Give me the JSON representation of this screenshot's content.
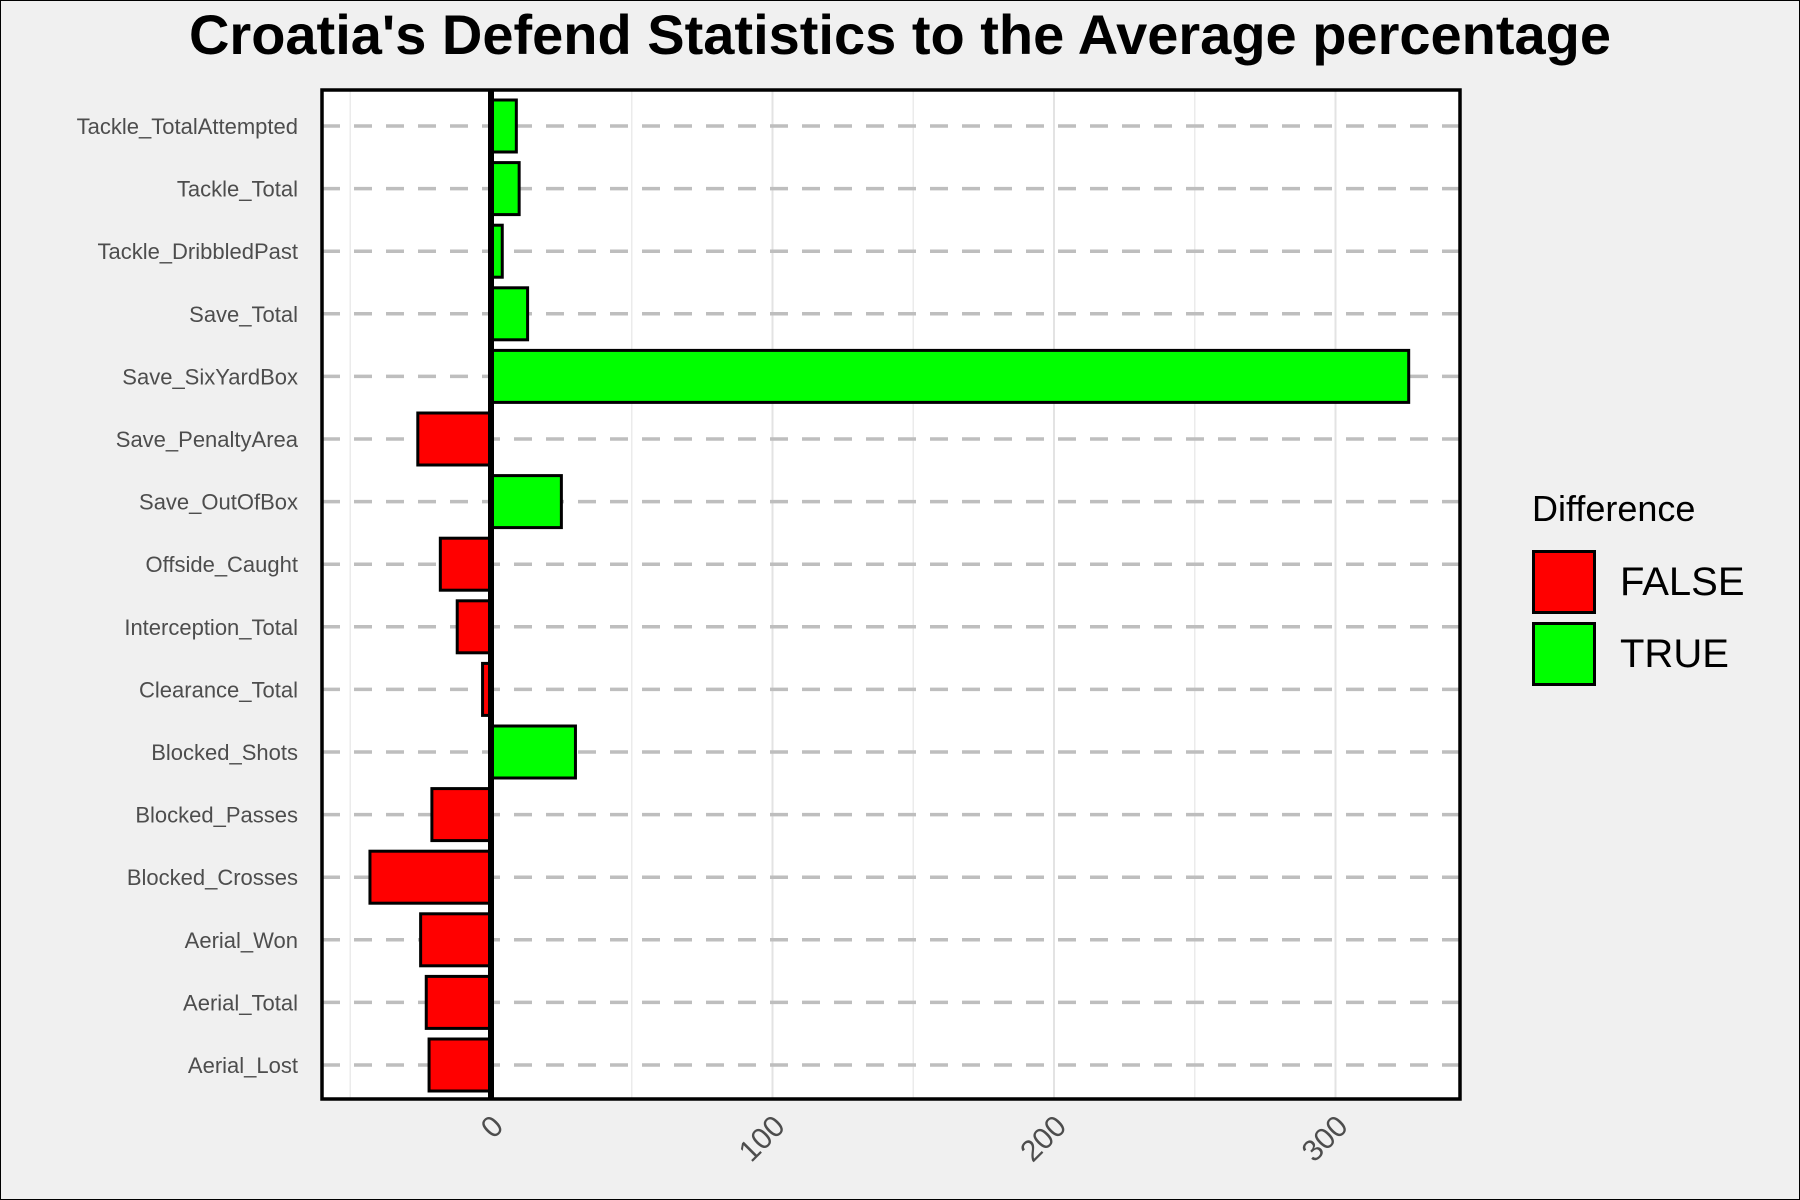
{
  "chart_data": {
    "type": "bar",
    "orientation": "horizontal",
    "title": "Croatia's Defend Statistics to the Average percentage",
    "xlabel": "",
    "ylabel": "",
    "categories": [
      "Tackle_TotalAttempted",
      "Tackle_Total",
      "Tackle_DribbledPast",
      "Save_Total",
      "Save_SixYardBox",
      "Save_PenaltyArea",
      "Save_OutOfBox",
      "Offside_Caught",
      "Interception_Total",
      "Clearance_Total",
      "Blocked_Shots",
      "Blocked_Passes",
      "Blocked_Crosses",
      "Aerial_Won",
      "Aerial_Total",
      "Aerial_Lost"
    ],
    "values": [
      9,
      10,
      4,
      13,
      326,
      -26,
      25,
      -18,
      -12,
      -3,
      30,
      -21,
      -43,
      -25,
      -23,
      -22
    ],
    "xlim": [
      -60,
      345
    ],
    "xticks": [
      "0",
      "100",
      "200",
      "300"
    ],
    "grid": true,
    "legend": {
      "title": "Difference",
      "position": "right",
      "entries": [
        {
          "label": "FALSE",
          "color": "#ff0000"
        },
        {
          "label": "TRUE",
          "color": "#00ff00"
        }
      ]
    },
    "colors": {
      "negative": "#ff0000",
      "positive": "#00ff00"
    }
  }
}
